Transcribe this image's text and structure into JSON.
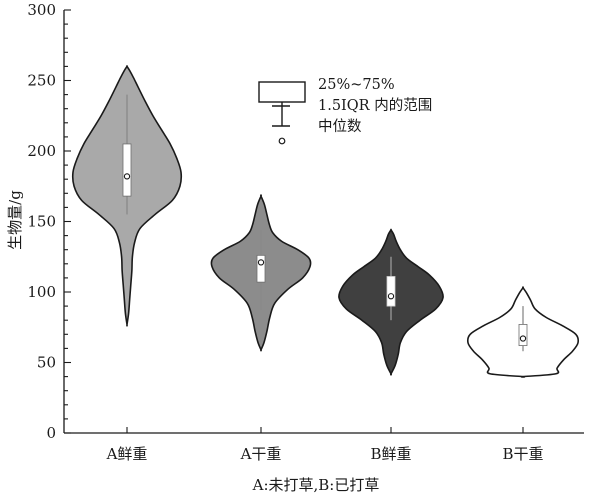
{
  "chart_data": {
    "type": "violin",
    "ylabel": "生物量/g",
    "xlabel": "A:未打草,B:已打草",
    "ylim": [
      0,
      300
    ],
    "yticks": [
      0,
      50,
      100,
      150,
      200,
      250,
      300
    ],
    "categories": [
      "A鲜重",
      "A干重",
      "B鲜重",
      "B干重"
    ],
    "series": [
      {
        "category": "A鲜重",
        "fill": "#a9a9a9",
        "min": 77,
        "max": 260,
        "q1": 168,
        "median": 182,
        "q3": 205,
        "whisker_low": 155,
        "whisker_high": 240,
        "density": [
          [
            77,
            0.0
          ],
          [
            85,
            0.03
          ],
          [
            95,
            0.05
          ],
          [
            105,
            0.07
          ],
          [
            115,
            0.09
          ],
          [
            125,
            0.1
          ],
          [
            135,
            0.14
          ],
          [
            145,
            0.24
          ],
          [
            155,
            0.52
          ],
          [
            165,
            0.84
          ],
          [
            175,
            0.98
          ],
          [
            185,
            1.0
          ],
          [
            195,
            0.92
          ],
          [
            205,
            0.8
          ],
          [
            215,
            0.64
          ],
          [
            225,
            0.48
          ],
          [
            235,
            0.34
          ],
          [
            245,
            0.21
          ],
          [
            252,
            0.12
          ],
          [
            257,
            0.05
          ],
          [
            260,
            0.0
          ]
        ]
      },
      {
        "category": "A干重",
        "fill": "#8c8c8c",
        "min": 59,
        "max": 168,
        "q1": 107,
        "median": 121,
        "q3": 126,
        "whisker_low": 87,
        "whisker_high": 144,
        "density": [
          [
            59,
            0.0
          ],
          [
            64,
            0.06
          ],
          [
            72,
            0.12
          ],
          [
            82,
            0.18
          ],
          [
            92,
            0.28
          ],
          [
            102,
            0.55
          ],
          [
            110,
            0.85
          ],
          [
            118,
            1.0
          ],
          [
            124,
            0.98
          ],
          [
            130,
            0.75
          ],
          [
            136,
            0.42
          ],
          [
            142,
            0.24
          ],
          [
            148,
            0.17
          ],
          [
            155,
            0.12
          ],
          [
            162,
            0.07
          ],
          [
            168,
            0.0
          ]
        ]
      },
      {
        "category": "B鲜重",
        "fill": "#404040",
        "min": 42,
        "max": 144,
        "q1": 90,
        "median": 97,
        "q3": 111,
        "whisker_low": 80,
        "whisker_high": 125,
        "density": [
          [
            42,
            0.0
          ],
          [
            48,
            0.08
          ],
          [
            56,
            0.14
          ],
          [
            64,
            0.18
          ],
          [
            72,
            0.3
          ],
          [
            80,
            0.56
          ],
          [
            88,
            0.86
          ],
          [
            96,
            1.0
          ],
          [
            104,
            0.93
          ],
          [
            112,
            0.74
          ],
          [
            118,
            0.52
          ],
          [
            124,
            0.3
          ],
          [
            130,
            0.18
          ],
          [
            136,
            0.1
          ],
          [
            141,
            0.05
          ],
          [
            144,
            0.0
          ]
        ]
      },
      {
        "category": "B干重",
        "fill": "#ffffff",
        "min": 40,
        "max": 103,
        "q1": 62,
        "median": 67,
        "q3": 77,
        "whisker_low": 58,
        "whisker_high": 90,
        "density": [
          [
            40,
            0.0
          ],
          [
            42,
            0.6
          ],
          [
            46,
            0.62
          ],
          [
            52,
            0.74
          ],
          [
            58,
            0.9
          ],
          [
            64,
            1.0
          ],
          [
            70,
            0.96
          ],
          [
            76,
            0.72
          ],
          [
            82,
            0.42
          ],
          [
            88,
            0.22
          ],
          [
            94,
            0.14
          ],
          [
            99,
            0.07
          ],
          [
            103,
            0.0
          ]
        ]
      }
    ],
    "legend": {
      "box_label": "25%~75%",
      "whisker_label": "1.5IQR 内的范围",
      "median_label": "中位数"
    }
  }
}
